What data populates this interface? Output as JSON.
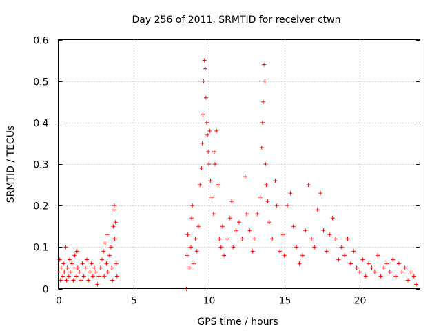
{
  "chart_data": {
    "type": "scatter",
    "title": "Day 256 of 2011, SRMTID for receiver ctwn",
    "xlabel": "GPS time / hours",
    "ylabel": "SRMTID / TECUs",
    "xlim": [
      0,
      24
    ],
    "ylim": [
      0,
      0.6
    ],
    "x_ticks": [
      0,
      5,
      10,
      15,
      20
    ],
    "y_ticks": [
      0,
      0.1,
      0.2,
      0.3,
      0.4,
      0.5,
      0.6
    ],
    "x_tick_labels": [
      "0",
      "5",
      "10",
      "15",
      "20"
    ],
    "y_tick_labels": [
      "0",
      "0.1",
      "0.2",
      "0.3",
      "0.4",
      "0.5",
      "0.6"
    ],
    "grid": true,
    "marker": "+",
    "color": "#ff0000",
    "gap_hours": [
      3.9,
      8.5
    ],
    "series": [
      {
        "points": [
          [
            0.0,
            0.04
          ],
          [
            0.1,
            0.07
          ],
          [
            0.15,
            0.02
          ],
          [
            0.2,
            0.05
          ],
          [
            0.3,
            0.03
          ],
          [
            0.35,
            0.06
          ],
          [
            0.4,
            0.04
          ],
          [
            0.5,
            0.1
          ],
          [
            0.55,
            0.02
          ],
          [
            0.6,
            0.05
          ],
          [
            0.7,
            0.03
          ],
          [
            0.75,
            0.07
          ],
          [
            0.8,
            0.04
          ],
          [
            0.9,
            0.06
          ],
          [
            1.0,
            0.02
          ],
          [
            1.05,
            0.05
          ],
          [
            1.1,
            0.08
          ],
          [
            1.2,
            0.03
          ],
          [
            1.25,
            0.09
          ],
          [
            1.3,
            0.05
          ],
          [
            1.4,
            0.04
          ],
          [
            1.5,
            0.02
          ],
          [
            1.6,
            0.06
          ],
          [
            1.7,
            0.03
          ],
          [
            1.8,
            0.05
          ],
          [
            1.9,
            0.07
          ],
          [
            2.0,
            0.02
          ],
          [
            2.1,
            0.04
          ],
          [
            2.2,
            0.06
          ],
          [
            2.3,
            0.03
          ],
          [
            2.4,
            0.05
          ],
          [
            2.5,
            0.04
          ],
          [
            2.6,
            0.01
          ],
          [
            2.7,
            0.03
          ],
          [
            2.8,
            0.05
          ],
          [
            2.9,
            0.07
          ],
          [
            3.0,
            0.09
          ],
          [
            3.05,
            0.03
          ],
          [
            3.1,
            0.11
          ],
          [
            3.2,
            0.06
          ],
          [
            3.25,
            0.13
          ],
          [
            3.3,
            0.04
          ],
          [
            3.4,
            0.08
          ],
          [
            3.5,
            0.1
          ],
          [
            3.55,
            0.05
          ],
          [
            3.6,
            0.02
          ],
          [
            3.65,
            0.15
          ],
          [
            3.7,
            0.19
          ],
          [
            3.72,
            0.2
          ],
          [
            3.75,
            0.12
          ],
          [
            3.8,
            0.16
          ],
          [
            3.85,
            0.06
          ],
          [
            3.9,
            0.03
          ],
          [
            8.5,
            0.0
          ],
          [
            8.55,
            0.08
          ],
          [
            8.6,
            0.13
          ],
          [
            8.7,
            0.05
          ],
          [
            8.8,
            0.1
          ],
          [
            8.85,
            0.17
          ],
          [
            8.9,
            0.2
          ],
          [
            9.0,
            0.06
          ],
          [
            9.1,
            0.12
          ],
          [
            9.2,
            0.09
          ],
          [
            9.3,
            0.15
          ],
          [
            9.4,
            0.25
          ],
          [
            9.5,
            0.29
          ],
          [
            9.55,
            0.35
          ],
          [
            9.6,
            0.42
          ],
          [
            9.65,
            0.5
          ],
          [
            9.7,
            0.55
          ],
          [
            9.75,
            0.53
          ],
          [
            9.8,
            0.46
          ],
          [
            9.85,
            0.4
          ],
          [
            9.9,
            0.37
          ],
          [
            9.95,
            0.33
          ],
          [
            10.0,
            0.3
          ],
          [
            10.05,
            0.38
          ],
          [
            10.1,
            0.26
          ],
          [
            10.2,
            0.22
          ],
          [
            10.3,
            0.18
          ],
          [
            10.35,
            0.33
          ],
          [
            10.4,
            0.3
          ],
          [
            10.5,
            0.38
          ],
          [
            10.6,
            0.25
          ],
          [
            10.7,
            0.12
          ],
          [
            10.8,
            0.1
          ],
          [
            10.9,
            0.15
          ],
          [
            11.0,
            0.08
          ],
          [
            11.2,
            0.12
          ],
          [
            11.4,
            0.17
          ],
          [
            11.5,
            0.21
          ],
          [
            11.6,
            0.1
          ],
          [
            11.8,
            0.14
          ],
          [
            12.0,
            0.16
          ],
          [
            12.2,
            0.12
          ],
          [
            12.4,
            0.27
          ],
          [
            12.5,
            0.18
          ],
          [
            12.7,
            0.14
          ],
          [
            12.9,
            0.09
          ],
          [
            13.0,
            0.12
          ],
          [
            13.2,
            0.18
          ],
          [
            13.4,
            0.22
          ],
          [
            13.5,
            0.34
          ],
          [
            13.55,
            0.4
          ],
          [
            13.6,
            0.45
          ],
          [
            13.65,
            0.54
          ],
          [
            13.7,
            0.5
          ],
          [
            13.75,
            0.3
          ],
          [
            13.8,
            0.25
          ],
          [
            13.9,
            0.21
          ],
          [
            14.0,
            0.16
          ],
          [
            14.2,
            0.12
          ],
          [
            14.4,
            0.26
          ],
          [
            14.5,
            0.2
          ],
          [
            14.7,
            0.09
          ],
          [
            14.9,
            0.13
          ],
          [
            15.0,
            0.08
          ],
          [
            15.2,
            0.2
          ],
          [
            15.4,
            0.23
          ],
          [
            15.6,
            0.15
          ],
          [
            15.8,
            0.1
          ],
          [
            16.0,
            0.06
          ],
          [
            16.2,
            0.08
          ],
          [
            16.4,
            0.14
          ],
          [
            16.6,
            0.25
          ],
          [
            16.8,
            0.12
          ],
          [
            17.0,
            0.1
          ],
          [
            17.2,
            0.19
          ],
          [
            17.4,
            0.23
          ],
          [
            17.6,
            0.14
          ],
          [
            17.8,
            0.09
          ],
          [
            18.0,
            0.13
          ],
          [
            18.2,
            0.17
          ],
          [
            18.4,
            0.12
          ],
          [
            18.6,
            0.07
          ],
          [
            18.8,
            0.1
          ],
          [
            19.0,
            0.08
          ],
          [
            19.2,
            0.12
          ],
          [
            19.4,
            0.06
          ],
          [
            19.6,
            0.09
          ],
          [
            19.8,
            0.05
          ],
          [
            20.0,
            0.04
          ],
          [
            20.2,
            0.07
          ],
          [
            20.4,
            0.03
          ],
          [
            20.6,
            0.06
          ],
          [
            20.8,
            0.05
          ],
          [
            21.0,
            0.04
          ],
          [
            21.2,
            0.08
          ],
          [
            21.4,
            0.03
          ],
          [
            21.6,
            0.05
          ],
          [
            21.8,
            0.06
          ],
          [
            22.0,
            0.04
          ],
          [
            22.2,
            0.07
          ],
          [
            22.4,
            0.03
          ],
          [
            22.6,
            0.06
          ],
          [
            22.8,
            0.04
          ],
          [
            23.0,
            0.05
          ],
          [
            23.2,
            0.02
          ],
          [
            23.4,
            0.04
          ],
          [
            23.6,
            0.03
          ],
          [
            23.75,
            0.01
          ]
        ]
      }
    ]
  }
}
